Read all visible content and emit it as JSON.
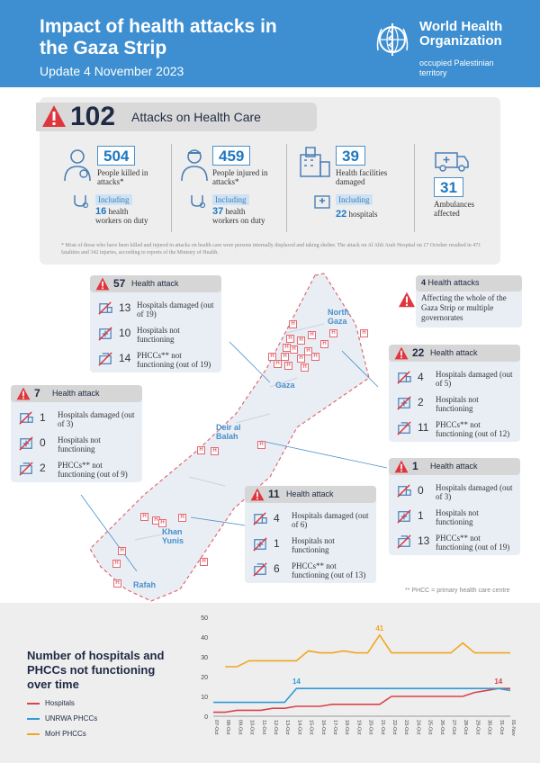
{
  "header": {
    "title": "Impact of health attacks in the Gaza Strip",
    "subtitle": "Update 4 November 2023",
    "org_name": "World Health Organization",
    "org_region": "occupied Palestinian territory"
  },
  "summary": {
    "attacks_number": "102",
    "attacks_label": "Attacks on Health Care",
    "killed": {
      "number": "504",
      "label": "People killed in attacks*",
      "including": "Including",
      "sub_number": "16",
      "sub_label": "health workers on duty"
    },
    "injured": {
      "number": "459",
      "label": "People injured in attacks*",
      "including": "Including",
      "sub_number": "37",
      "sub_label": "health workers on duty"
    },
    "facilities": {
      "number": "39",
      "label": "Health facilities damaged",
      "including": "Including",
      "sub_number": "22",
      "sub_label": "hospitals"
    },
    "ambulances": {
      "number": "31",
      "label": "Ambulances affected"
    },
    "footnote": "* Most of those who have been killed and injured in attacks on health care were persons internally displaced and taking shelter. The attack on Al Ahli Arab Hospital on 17 October resulted in 471 fatalities and 342 injuries, according to reports of the Ministry of Health."
  },
  "panels": {
    "gaza": {
      "number": "57",
      "title": "Health attack",
      "rows": [
        {
          "number": "13",
          "label": "Hospitals damaged (out of 19)"
        },
        {
          "number": "10",
          "label": "Hospitals not functioning"
        },
        {
          "number": "14",
          "label": "PHCCs** not functioning (out of 19)"
        }
      ]
    },
    "rafah": {
      "number": "7",
      "title": "Health attack",
      "rows": [
        {
          "number": "1",
          "label": "Hospitals damaged (out of 3)"
        },
        {
          "number": "0",
          "label": "Hospitals not functioning"
        },
        {
          "number": "2",
          "label": "PHCCs** not functioning (out of 9)"
        }
      ]
    },
    "whole": {
      "number": "4",
      "title": "Health attacks",
      "note": "Affecting the whole of the Gaza Strip or multiple governorates"
    },
    "north": {
      "number": "22",
      "title": "Health attack",
      "rows": [
        {
          "number": "4",
          "label": "Hospitals damaged (out of 5)"
        },
        {
          "number": "2",
          "label": "Hospitals not functioning"
        },
        {
          "number": "11",
          "label": "PHCCs** not functioning (out of 12)"
        }
      ]
    },
    "deir": {
      "number": "1",
      "title": "Health attack",
      "rows": [
        {
          "number": "0",
          "label": "Hospitals damaged (out of 3)"
        },
        {
          "number": "1",
          "label": "Hospitals not functioning"
        },
        {
          "number": "13",
          "label": "PHCCs** not functioning (out of 19)"
        }
      ]
    },
    "khan": {
      "number": "11",
      "title": "Health attack",
      "rows": [
        {
          "number": "4",
          "label": "Hospitals damaged (out of 6)"
        },
        {
          "number": "1",
          "label": "Hospitals not functioning"
        },
        {
          "number": "6",
          "label": "PHCCs** not functioning (out of 13)"
        }
      ]
    }
  },
  "map": {
    "places": {
      "north_gaza": "North Gaza",
      "gaza": "Gaza",
      "deir": "Deir al Balah",
      "khan": "Khan Yunis",
      "rafah": "Rafah"
    },
    "marker_letter": "H",
    "phcc_note": "** PHCC = primary health care centre"
  },
  "chart_title": "Number of hospitals and PHCCs not functioning over time",
  "colors": {
    "header": "#3d8fd1",
    "hospitals": "#d9434b",
    "unrwa": "#2e9bd6",
    "moh": "#f0a722",
    "panel": "#e9eef5"
  },
  "icons": [
    "warning-icon",
    "person-killed-icon",
    "person-injured-icon",
    "facility-icon",
    "ambulance-icon",
    "hospital-damaged-icon",
    "hospital-not-functioning-icon",
    "phcc-not-functioning-icon",
    "hospital-marker-icon",
    "who-logo"
  ],
  "chart_data": {
    "type": "line",
    "x": [
      "07-Oct",
      "08-Oct",
      "09-Oct",
      "10-Oct",
      "11-Oct",
      "12-Oct",
      "13-Oct",
      "14-Oct",
      "15-Oct",
      "16-Oct",
      "17-Oct",
      "18-Oct",
      "19-Oct",
      "20-Oct",
      "21-Oct",
      "22-Oct",
      "23-Oct",
      "24-Oct",
      "25-Oct",
      "26-Oct",
      "27-Oct",
      "28-Oct",
      "29-Oct",
      "30-Oct",
      "31-Oct",
      "01-Nov"
    ],
    "ylim": [
      0,
      50
    ],
    "yticks": [
      0,
      10,
      20,
      30,
      40,
      50
    ],
    "series": [
      {
        "name": "Hospitals",
        "color": "#d9434b",
        "values": [
          2,
          2,
          3,
          3,
          3,
          4,
          4,
          5,
          5,
          5,
          6,
          6,
          6,
          6,
          6,
          10,
          10,
          10,
          10,
          10,
          10,
          10,
          12,
          13,
          14,
          14
        ]
      },
      {
        "name": "UNRWA PHCCs",
        "color": "#2e9bd6",
        "values": [
          7,
          7,
          7,
          7,
          7,
          7,
          7,
          14,
          14,
          14,
          14,
          14,
          14,
          14,
          14,
          14,
          14,
          14,
          14,
          14,
          14,
          14,
          14,
          14,
          14,
          13
        ]
      },
      {
        "name": "MoH PHCCs",
        "color": "#f0a722",
        "values": [
          null,
          25,
          25,
          28,
          28,
          28,
          28,
          28,
          33,
          32,
          32,
          33,
          32,
          32,
          41,
          32,
          32,
          32,
          32,
          32,
          32,
          37,
          32,
          32,
          32,
          32
        ]
      }
    ],
    "annotations": [
      {
        "text": "41",
        "series": "MoH PHCCs",
        "x": "21-Oct"
      },
      {
        "text": "14",
        "series": "UNRWA PHCCs",
        "x": "14-Oct"
      },
      {
        "text": "14",
        "series": "Hospitals",
        "x": "31-Oct"
      }
    ]
  }
}
